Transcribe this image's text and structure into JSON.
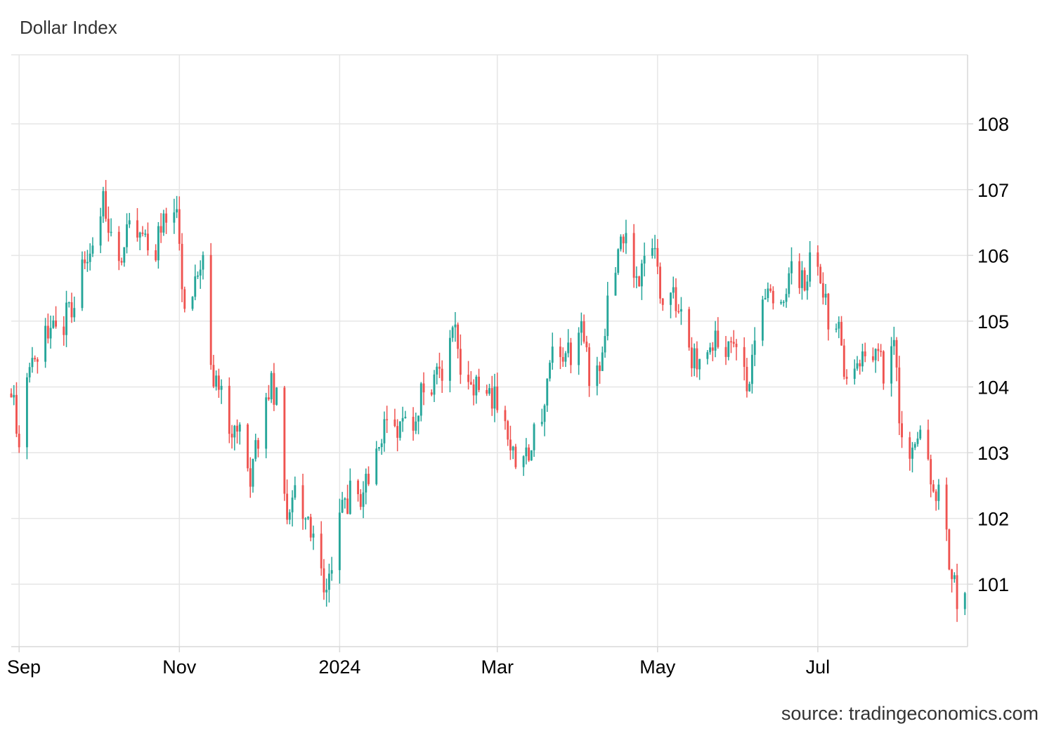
{
  "title": "Dollar Index",
  "source": "source: tradingeconomics.com",
  "chart_data": {
    "type": "candlestick",
    "title": "Dollar Index",
    "xlabel": "",
    "ylabel": "",
    "x_ticks": [
      "Sep",
      "Nov",
      "2024",
      "Mar",
      "May",
      "Jul"
    ],
    "x_tick_dates": [
      "2023-09-01",
      "2023-11-01",
      "2024-01-01",
      "2024-03-01",
      "2024-05-01",
      "2024-07-01"
    ],
    "y_ticks": [
      101,
      102,
      103,
      104,
      105,
      106,
      107,
      108
    ],
    "xlim": [
      "2023-08-29",
      "2024-08-27"
    ],
    "ylim": [
      100.05,
      109.05
    ],
    "grid": true,
    "y_axis_position": "right",
    "colors": {
      "up": "#26a69a",
      "down": "#ef5350",
      "grid": "#e6e6e6",
      "axis": "#d9d9d9"
    },
    "anchors": [
      [
        "2023-08-29",
        103.9
      ],
      [
        "2023-09-01",
        103.3
      ],
      [
        "2023-09-05",
        104.2
      ],
      [
        "2023-09-08",
        104.6
      ],
      [
        "2023-09-12",
        104.9
      ],
      [
        "2023-09-15",
        104.8
      ],
      [
        "2023-09-19",
        105.1
      ],
      [
        "2023-09-22",
        105.3
      ],
      [
        "2023-09-26",
        105.9
      ],
      [
        "2023-09-29",
        106.2
      ],
      [
        "2023-10-03",
        107.0
      ],
      [
        "2023-10-06",
        106.3
      ],
      [
        "2023-10-10",
        105.8
      ],
      [
        "2023-10-13",
        106.6
      ],
      [
        "2023-10-17",
        106.3
      ],
      [
        "2023-10-20",
        106.1
      ],
      [
        "2023-10-24",
        106.2
      ],
      [
        "2023-10-27",
        106.5
      ],
      [
        "2023-10-31",
        106.7
      ],
      [
        "2023-11-03",
        105.0
      ],
      [
        "2023-11-07",
        105.6
      ],
      [
        "2023-11-10",
        105.8
      ],
      [
        "2023-11-14",
        104.1
      ],
      [
        "2023-11-17",
        103.8
      ],
      [
        "2023-11-21",
        103.4
      ],
      [
        "2023-11-24",
        103.3
      ],
      [
        "2023-11-28",
        102.7
      ],
      [
        "2023-12-01",
        103.2
      ],
      [
        "2023-12-05",
        104.0
      ],
      [
        "2023-12-08",
        103.9
      ],
      [
        "2023-12-12",
        102.2
      ],
      [
        "2023-12-15",
        102.4
      ],
      [
        "2023-12-19",
        102.0
      ],
      [
        "2023-12-22",
        101.7
      ],
      [
        "2023-12-27",
        100.9
      ],
      [
        "2023-12-29",
        101.3
      ],
      [
        "2024-01-02",
        102.1
      ],
      [
        "2024-01-05",
        102.4
      ],
      [
        "2024-01-09",
        102.4
      ],
      [
        "2024-01-12",
        102.5
      ],
      [
        "2024-01-16",
        103.2
      ],
      [
        "2024-01-19",
        103.3
      ],
      [
        "2024-01-23",
        103.4
      ],
      [
        "2024-01-26",
        103.4
      ],
      [
        "2024-01-30",
        103.5
      ],
      [
        "2024-02-02",
        104.0
      ],
      [
        "2024-02-06",
        104.1
      ],
      [
        "2024-02-09",
        104.0
      ],
      [
        "2024-02-13",
        104.9
      ],
      [
        "2024-02-16",
        104.3
      ],
      [
        "2024-02-20",
        104.2
      ],
      [
        "2024-02-23",
        103.9
      ],
      [
        "2024-02-27",
        103.9
      ],
      [
        "2024-03-01",
        103.8
      ],
      [
        "2024-03-05",
        103.4
      ],
      [
        "2024-03-08",
        102.8
      ],
      [
        "2024-03-12",
        102.9
      ],
      [
        "2024-03-15",
        103.4
      ],
      [
        "2024-03-19",
        103.8
      ],
      [
        "2024-03-22",
        104.4
      ],
      [
        "2024-03-26",
        104.3
      ],
      [
        "2024-03-29",
        104.5
      ],
      [
        "2024-04-02",
        104.8
      ],
      [
        "2024-04-05",
        104.2
      ],
      [
        "2024-04-09",
        104.1
      ],
      [
        "2024-04-12",
        105.3
      ],
      [
        "2024-04-16",
        106.2
      ],
      [
        "2024-04-19",
        106.1
      ],
      [
        "2024-04-23",
        105.6
      ],
      [
        "2024-04-26",
        106.1
      ],
      [
        "2024-04-30",
        106.2
      ],
      [
        "2024-05-03",
        105.0
      ],
      [
        "2024-05-07",
        105.4
      ],
      [
        "2024-05-10",
        105.3
      ],
      [
        "2024-05-14",
        104.5
      ],
      [
        "2024-05-17",
        104.5
      ],
      [
        "2024-05-21",
        104.6
      ],
      [
        "2024-05-24",
        104.7
      ],
      [
        "2024-05-28",
        104.6
      ],
      [
        "2024-05-31",
        104.6
      ],
      [
        "2024-06-04",
        104.0
      ],
      [
        "2024-06-07",
        104.8
      ],
      [
        "2024-06-11",
        105.3
      ],
      [
        "2024-06-14",
        105.5
      ],
      [
        "2024-06-18",
        105.3
      ],
      [
        "2024-06-21",
        105.8
      ],
      [
        "2024-06-25",
        105.6
      ],
      [
        "2024-06-28",
        105.9
      ],
      [
        "2024-07-02",
        105.8
      ],
      [
        "2024-07-05",
        105.0
      ],
      [
        "2024-07-09",
        105.0
      ],
      [
        "2024-07-12",
        104.1
      ],
      [
        "2024-07-16",
        104.2
      ],
      [
        "2024-07-19",
        104.4
      ],
      [
        "2024-07-23",
        104.4
      ],
      [
        "2024-07-26",
        104.3
      ],
      [
        "2024-07-30",
        104.5
      ],
      [
        "2024-08-02",
        103.2
      ],
      [
        "2024-08-06",
        103.0
      ],
      [
        "2024-08-09",
        103.2
      ],
      [
        "2024-08-13",
        102.6
      ],
      [
        "2024-08-16",
        102.4
      ],
      [
        "2024-08-20",
        101.4
      ],
      [
        "2024-08-23",
        100.7
      ],
      [
        "2024-08-26",
        100.8
      ]
    ]
  }
}
